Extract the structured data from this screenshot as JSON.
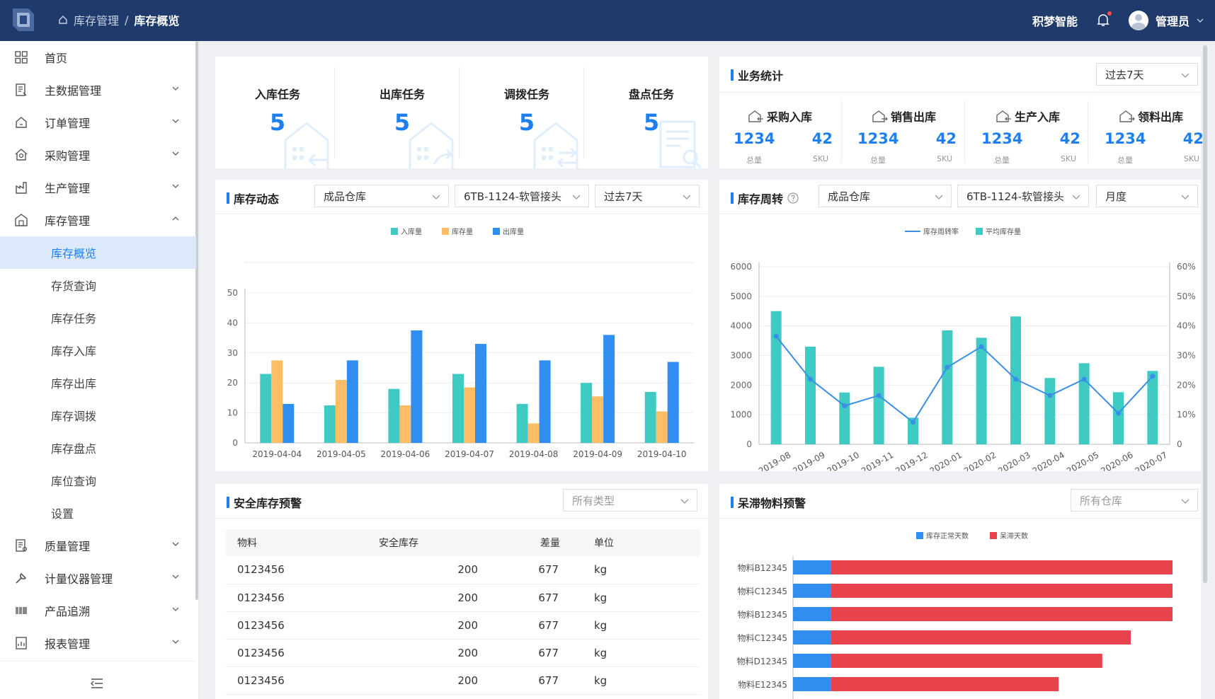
{
  "header": {
    "breadcrumb": [
      "库存管理",
      "/",
      "库存概览"
    ],
    "brand": "积梦智能",
    "user": "管理员"
  },
  "sidebar": {
    "items": [
      {
        "label": "首页",
        "icon": "grid-icon",
        "expandable": false
      },
      {
        "label": "主数据管理",
        "icon": "document-icon",
        "expandable": true
      },
      {
        "label": "订单管理",
        "icon": "home-icon",
        "expandable": true
      },
      {
        "label": "采购管理",
        "icon": "house-gear-icon",
        "expandable": true
      },
      {
        "label": "生产管理",
        "icon": "factory-icon",
        "expandable": true
      },
      {
        "label": "库存管理",
        "icon": "warehouse-icon",
        "expandable": true,
        "expanded": true
      }
    ],
    "sub_items": [
      "库存概览",
      "存货查询",
      "库存任务",
      "库存入库",
      "库存出库",
      "库存调拨",
      "库存盘点",
      "库位查询",
      "设置"
    ],
    "active_sub": "库存概览",
    "items_after": [
      {
        "label": "质量管理",
        "icon": "checklist-icon"
      },
      {
        "label": "计量仪器管理",
        "icon": "tool-icon"
      },
      {
        "label": "产品追溯",
        "icon": "barcode-icon"
      },
      {
        "label": "报表管理",
        "icon": "report-icon"
      }
    ]
  },
  "tasks": [
    {
      "title": "入库任务",
      "value": "5",
      "icon": "inbound-building-icon"
    },
    {
      "title": "出库任务",
      "value": "5",
      "icon": "outbound-building-icon"
    },
    {
      "title": "调拨任务",
      "value": "5",
      "icon": "transfer-building-icon"
    },
    {
      "title": "盘点任务",
      "value": "5",
      "icon": "inventory-doc-icon"
    }
  ],
  "business": {
    "title": "业务统计",
    "period": "过去7天",
    "items": [
      {
        "title": "采购入库",
        "total": "1234",
        "sku": "42",
        "total_label": "总量",
        "sku_label": "SKU"
      },
      {
        "title": "销售出库",
        "total": "1234",
        "sku": "42",
        "total_label": "总量",
        "sku_label": "SKU"
      },
      {
        "title": "生产入库",
        "total": "1234",
        "sku": "42",
        "total_label": "总量",
        "sku_label": "SKU"
      },
      {
        "title": "领料出库",
        "total": "1234",
        "sku": "42",
        "total_label": "总量",
        "sku_label": "SKU"
      }
    ]
  },
  "dynamics": {
    "title": "库存动态",
    "filters": {
      "warehouse": "成品仓库",
      "material": "6TB-1124-软管接头",
      "period": "过去7天"
    }
  },
  "turnover": {
    "title": "库存周转",
    "filters": {
      "warehouse": "成品仓库",
      "material": "6TB-1124-软管接头",
      "period": "月度"
    }
  },
  "safety": {
    "title": "安全库存预警",
    "filter_placeholder": "所有类型",
    "columns": [
      "物料",
      "安全库存",
      "差量",
      "单位"
    ],
    "rows": [
      [
        "0123456",
        "200",
        "677",
        "kg"
      ],
      [
        "0123456",
        "200",
        "677",
        "kg"
      ],
      [
        "0123456",
        "200",
        "677",
        "kg"
      ],
      [
        "0123456",
        "200",
        "677",
        "kg"
      ],
      [
        "0123456",
        "200",
        "677",
        "kg"
      ]
    ]
  },
  "stagnant": {
    "title": "呆滞物料预警",
    "filter_placeholder": "所有仓库"
  },
  "chart_data": [
    {
      "type": "bar",
      "categories": [
        "2019-04-04",
        "2019-04-05",
        "2019-04-06",
        "2019-04-07",
        "2019-04-08",
        "2019-04-09",
        "2019-04-10"
      ],
      "series": [
        {
          "name": "入库量",
          "color": "#3fcbc4",
          "values": [
            23,
            12.5,
            18,
            23,
            13,
            20,
            17
          ]
        },
        {
          "name": "库存量",
          "color": "#ffbd66",
          "values": [
            27.5,
            21,
            12.5,
            18.5,
            6.5,
            15.5,
            10.5
          ]
        },
        {
          "name": "出库量",
          "color": "#2f8ef0",
          "values": [
            13,
            27.5,
            37.5,
            33,
            27.5,
            36,
            27
          ]
        }
      ],
      "ylim": [
        0,
        50
      ],
      "yticks": [
        0,
        10,
        20,
        30,
        40,
        50
      ],
      "legend": "top-center"
    },
    {
      "type": "bar",
      "categories": [
        "2019-08",
        "2019-09",
        "2019-10",
        "2019-11",
        "2019-12",
        "2020-01",
        "2020-02",
        "2020-03",
        "2020-04",
        "2020-05",
        "2020-06",
        "2020-07"
      ],
      "series": [
        {
          "name": "平均库存量",
          "type": "bar",
          "axis": "left",
          "color": "#3fcbc4",
          "values": [
            4500,
            3300,
            1750,
            2620,
            900,
            3850,
            3600,
            4320,
            2240,
            2740,
            1760,
            2480
          ]
        },
        {
          "name": "库存周转率",
          "type": "line",
          "axis": "right",
          "color": "#3a8ee6",
          "values": [
            36.5,
            22,
            13,
            16.5,
            7.5,
            26,
            33,
            22,
            16.5,
            22,
            10.5,
            23
          ]
        }
      ],
      "ylim": [
        0,
        6000
      ],
      "yticks": [
        0,
        1000,
        2000,
        3000,
        4000,
        5000,
        6000
      ],
      "y2lim": [
        0,
        60
      ],
      "y2ticks": [
        "0",
        "10%",
        "20%",
        "30%",
        "40%",
        "50%",
        "60%"
      ],
      "legend": "top-center"
    },
    {
      "type": "bar",
      "orientation": "horizontal",
      "stacked": true,
      "categories": [
        "物料B12345",
        "物料C12345",
        "物料B12345",
        "物料C12345",
        "物料D12345",
        "物料E12345"
      ],
      "series": [
        {
          "name": "库存正常天数",
          "color": "#2f8ef0",
          "values": [
            10,
            10,
            10,
            10,
            10,
            10
          ]
        },
        {
          "name": "呆滞天数",
          "color": "#e8434d",
          "values": [
            90,
            90,
            90,
            79,
            71.5,
            60
          ]
        }
      ],
      "legend": "top-center"
    }
  ]
}
